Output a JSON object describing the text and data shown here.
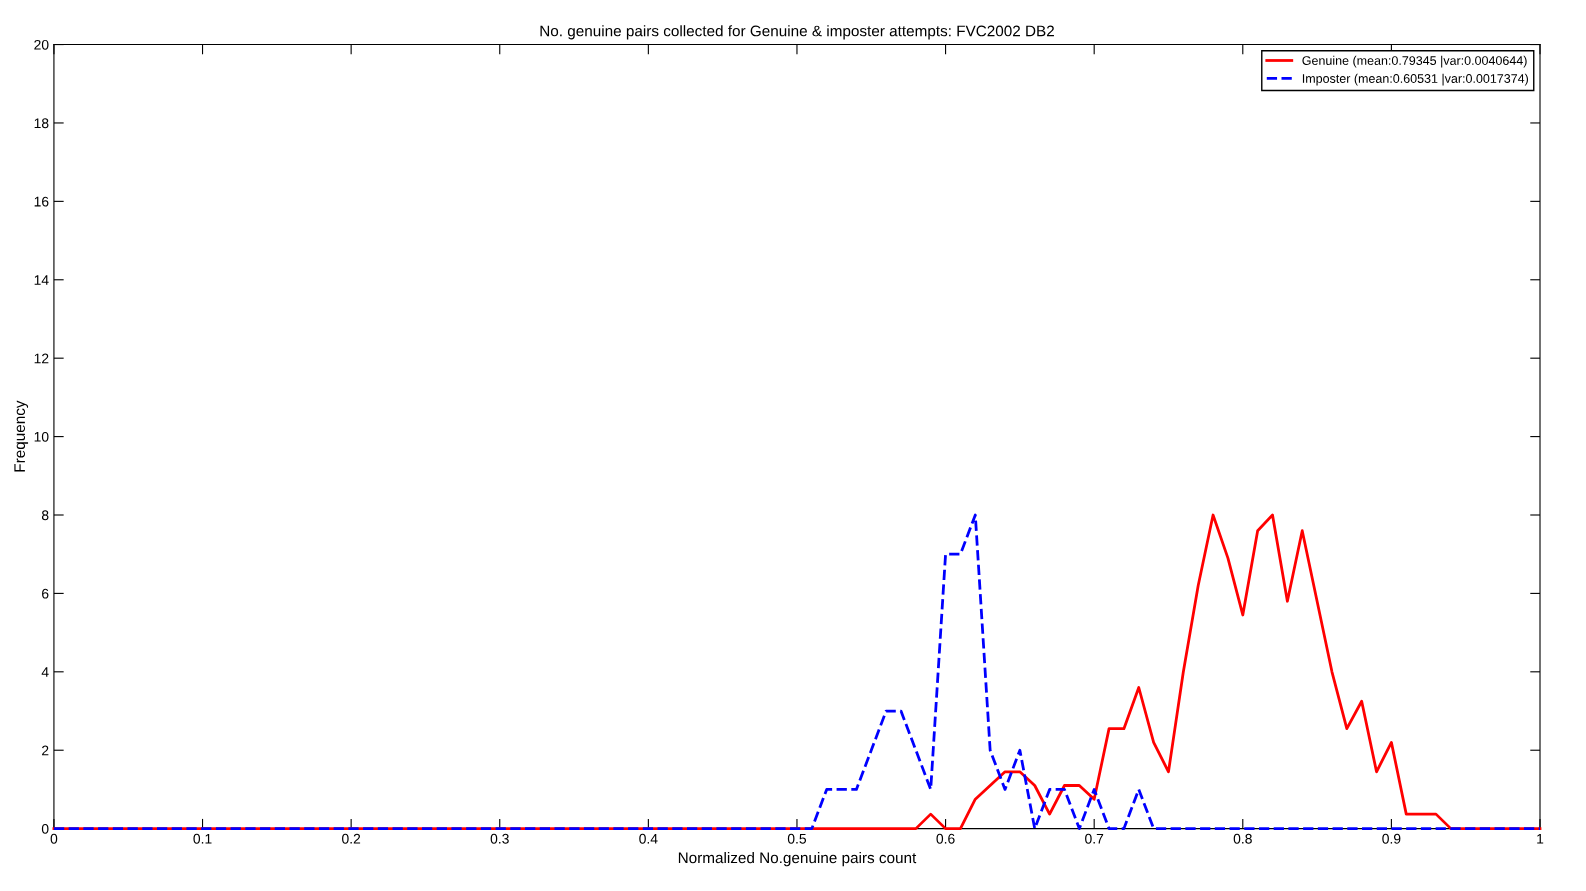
{
  "chart_data": {
    "type": "line",
    "title": "No. genuine pairs collected for Genuine & imposter attempts: FVC2002 DB2",
    "xlabel": "Normalized No.genuine pairs count",
    "ylabel": "Frequency",
    "x": [
      0,
      0.01,
      0.02,
      0.03,
      0.04,
      0.05,
      0.06,
      0.07,
      0.08,
      0.09,
      0.1,
      0.11,
      0.12,
      0.13,
      0.14,
      0.15,
      0.16,
      0.17,
      0.18,
      0.19,
      0.2,
      0.21,
      0.22,
      0.23,
      0.24,
      0.25,
      0.26,
      0.27,
      0.28,
      0.29,
      0.3,
      0.31,
      0.32,
      0.33,
      0.34,
      0.35,
      0.36,
      0.37,
      0.38,
      0.39,
      0.4,
      0.41,
      0.42,
      0.43,
      0.44,
      0.45,
      0.46,
      0.47,
      0.48,
      0.49,
      0.5,
      0.51,
      0.52,
      0.53,
      0.54,
      0.55,
      0.56,
      0.57,
      0.58,
      0.59,
      0.6,
      0.61,
      0.62,
      0.63,
      0.64,
      0.65,
      0.66,
      0.67,
      0.68,
      0.69,
      0.7,
      0.71,
      0.72,
      0.73,
      0.74,
      0.75,
      0.76,
      0.77,
      0.78,
      0.79,
      0.8,
      0.81,
      0.82,
      0.83,
      0.84,
      0.85,
      0.86,
      0.87,
      0.88,
      0.89,
      0.9,
      0.91,
      0.92,
      0.93,
      0.94,
      0.95,
      0.96,
      0.97,
      0.98,
      0.99,
      1
    ],
    "series": [
      {
        "name": "Genuine (mean:0.79345 |var:0.0040644)",
        "color": "#ff0000",
        "line_style": "solid",
        "values": [
          0,
          0,
          0,
          0,
          0,
          0,
          0,
          0,
          0,
          0,
          0,
          0,
          0,
          0,
          0,
          0,
          0,
          0,
          0,
          0,
          0,
          0,
          0,
          0,
          0,
          0,
          0,
          0,
          0,
          0,
          0,
          0,
          0,
          0,
          0,
          0,
          0,
          0,
          0,
          0,
          0,
          0,
          0,
          0,
          0,
          0,
          0,
          0,
          0,
          0,
          0,
          0,
          0,
          0,
          0,
          0,
          0,
          0,
          0,
          0.37,
          0,
          0,
          0.75,
          1.1,
          1.45,
          1.45,
          1.1,
          0.37,
          1.1,
          1.1,
          0.75,
          2.55,
          2.55,
          3.6,
          2.2,
          1.45,
          4.0,
          6.2,
          8,
          6.9,
          5.45,
          7.6,
          8,
          5.8,
          7.6,
          5.8,
          4.0,
          2.55,
          3.25,
          1.45,
          2.2,
          0.37,
          0.37,
          0.37,
          0,
          0,
          0,
          0,
          0,
          0,
          0
        ]
      },
      {
        "name": "Imposter (mean:0.60531 |var:0.0017374)",
        "color": "#0000ff",
        "line_style": "dashed",
        "values": [
          0,
          0,
          0,
          0,
          0,
          0,
          0,
          0,
          0,
          0,
          0,
          0,
          0,
          0,
          0,
          0,
          0,
          0,
          0,
          0,
          0,
          0,
          0,
          0,
          0,
          0,
          0,
          0,
          0,
          0,
          0,
          0,
          0,
          0,
          0,
          0,
          0,
          0,
          0,
          0,
          0,
          0,
          0,
          0,
          0,
          0,
          0,
          0,
          0,
          0,
          0,
          0,
          1,
          1,
          1,
          2,
          3,
          3,
          2,
          1,
          7,
          7,
          8,
          2,
          1,
          2,
          0,
          1,
          1,
          0,
          1,
          0,
          0,
          1,
          0,
          0,
          0,
          0,
          0,
          0,
          0,
          0,
          0,
          0,
          0,
          0,
          0,
          0,
          0,
          0,
          0,
          0,
          0,
          0,
          0,
          0,
          0,
          0,
          0,
          0,
          0
        ]
      }
    ],
    "xlim": [
      0,
      1
    ],
    "xticks": [
      0,
      0.1,
      0.2,
      0.3,
      0.4,
      0.5,
      0.6,
      0.7,
      0.8,
      0.9,
      1
    ],
    "ylim": [
      0,
      20
    ],
    "yticks": [
      0,
      2,
      4,
      6,
      8,
      10,
      12,
      14,
      16,
      18,
      20
    ],
    "grid": false,
    "legend": "top right"
  }
}
